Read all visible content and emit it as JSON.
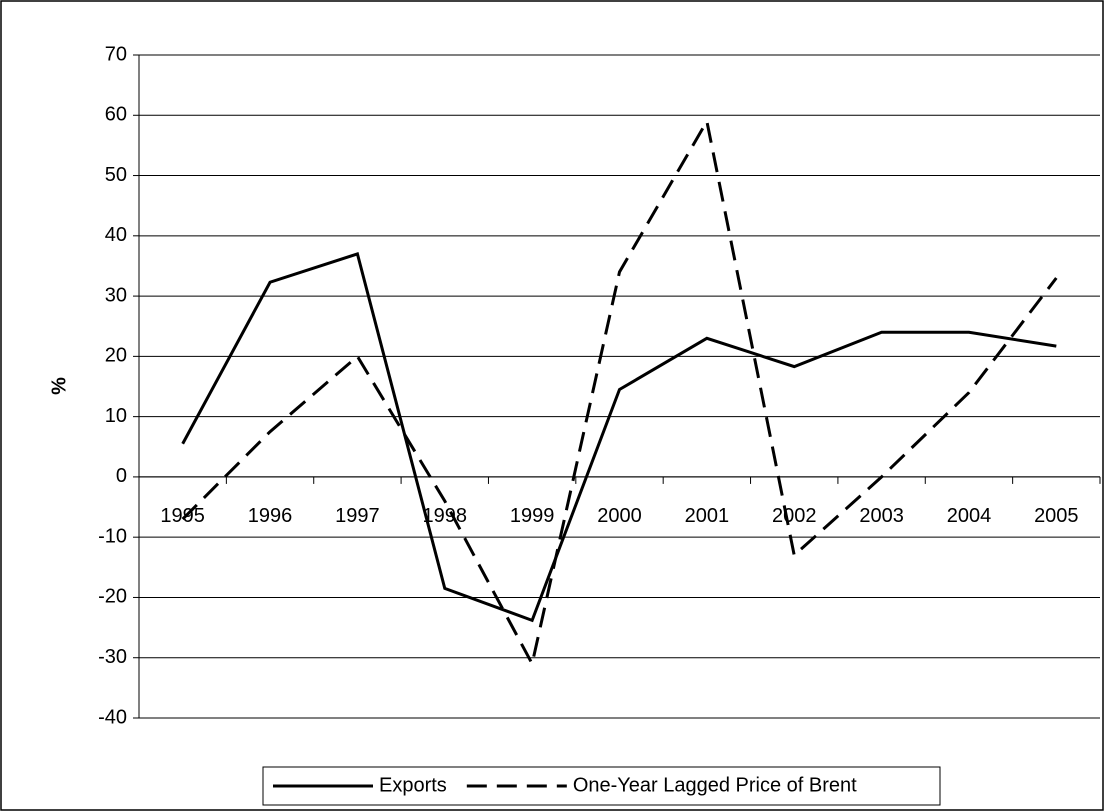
{
  "chart_data": {
    "type": "line",
    "y_label": "%",
    "categories": [
      "1995",
      "1996",
      "1997",
      "1998",
      "1999",
      "2000",
      "2001",
      "2002",
      "2003",
      "2004",
      "2005"
    ],
    "series": [
      {
        "name": "Exports",
        "color": "#000000",
        "dashed": false,
        "values": [
          5.5,
          32.3,
          37,
          -18.5,
          -23.8,
          14.5,
          23,
          18.3,
          24,
          24,
          21.7
        ]
      },
      {
        "name": "One-Year Lagged Price of Brent",
        "color": "#000000",
        "dashed": true,
        "values": [
          -7,
          7.5,
          20,
          -4,
          -31,
          34,
          59,
          -13,
          0,
          14,
          33
        ]
      }
    ],
    "ylim": [
      -40,
      70
    ],
    "yticks": [
      -40,
      -30,
      -20,
      -10,
      0,
      10,
      20,
      30,
      40,
      50,
      60,
      70
    ],
    "grid": true,
    "legend": "bottom"
  }
}
